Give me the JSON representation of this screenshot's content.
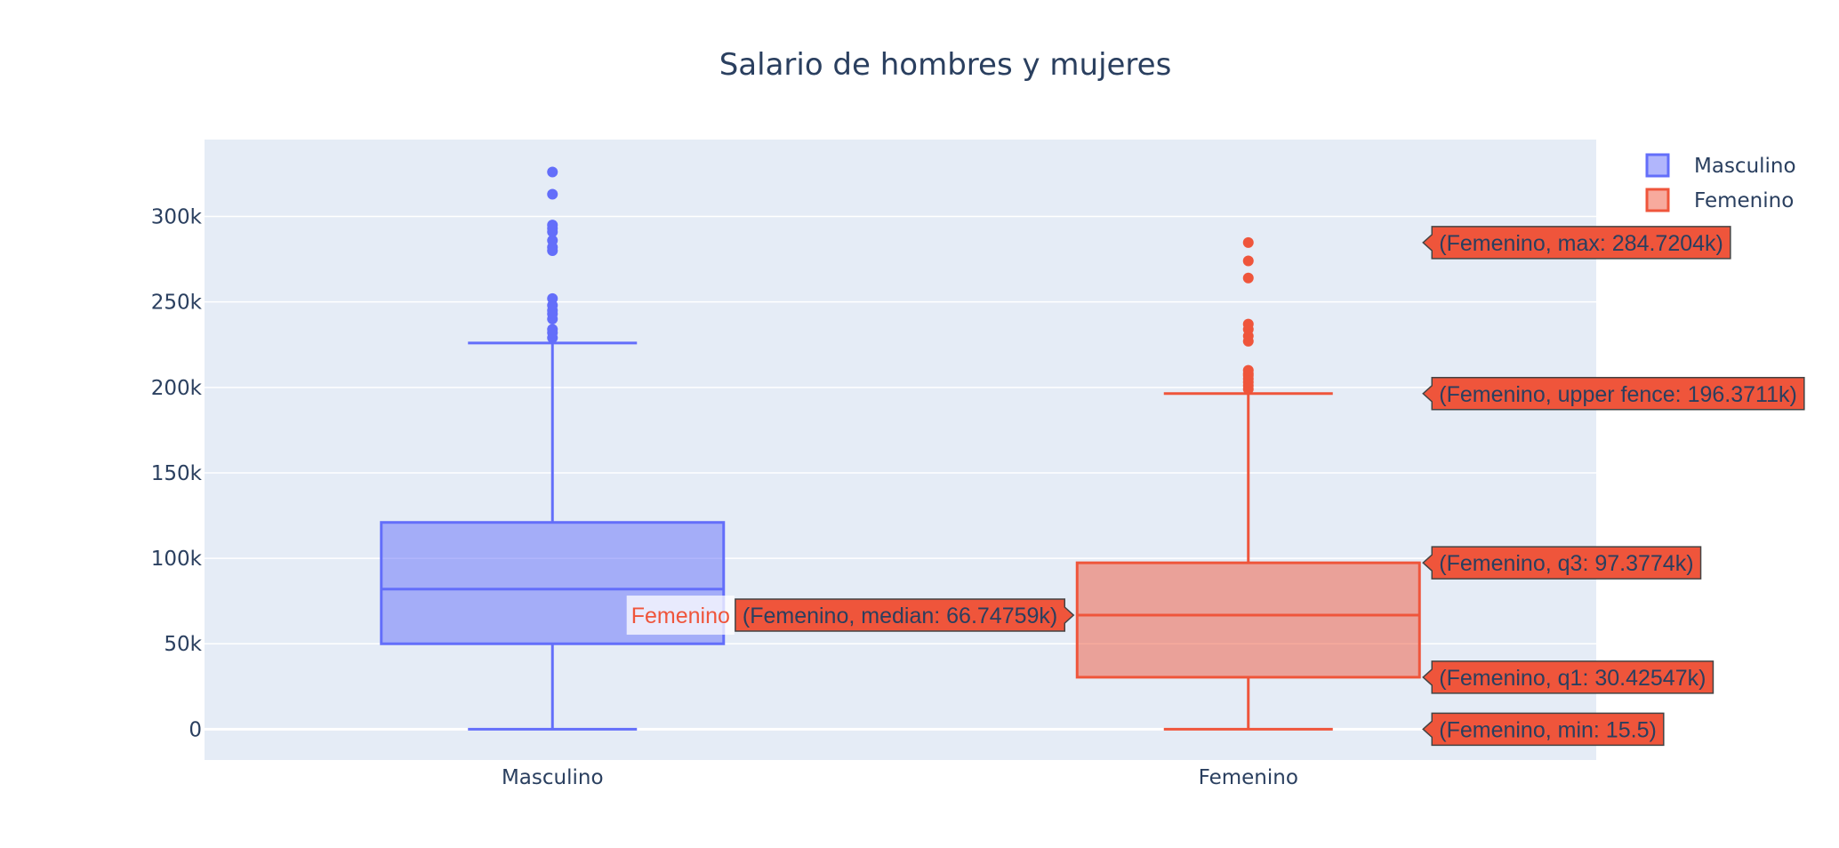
{
  "chart_data": {
    "type": "box",
    "title": "Salario de hombres y mujeres",
    "xlabel": "",
    "ylabel": "",
    "ylim": [
      -18000,
      345000
    ],
    "y_ticks": [
      {
        "value": 0,
        "label": "0"
      },
      {
        "value": 50000,
        "label": "50k"
      },
      {
        "value": 100000,
        "label": "100k"
      },
      {
        "value": 150000,
        "label": "150k"
      },
      {
        "value": 200000,
        "label": "200k"
      },
      {
        "value": 250000,
        "label": "250k"
      },
      {
        "value": 300000,
        "label": "300k"
      }
    ],
    "grid": true,
    "legend_position": "top-right",
    "categories": [
      "Masculino",
      "Femenino"
    ],
    "series": [
      {
        "name": "Masculino",
        "category": "Masculino",
        "color": "#636efa",
        "fill": "rgba(99,110,250,0.5)",
        "min": 0,
        "q1": 50000,
        "median": 82000,
        "q3": 121000,
        "upper_fence": 226000,
        "outliers": [
          229000,
          232000,
          234000,
          240000,
          243000,
          245000,
          248000,
          252000,
          280000,
          282000,
          286000,
          291000,
          293000,
          295000,
          313000,
          326000
        ]
      },
      {
        "name": "Femenino",
        "category": "Femenino",
        "color": "#ef553b",
        "fill": "rgba(239,85,59,0.5)",
        "min": 15.5,
        "q1": 30425.47,
        "median": 66747.59,
        "q3": 97377.4,
        "upper_fence": 196371.1,
        "max": 284720.4,
        "outliers": [
          199000,
          201000,
          203000,
          205000,
          207000,
          208000,
          210000,
          227000,
          230000,
          234000,
          237000,
          264000,
          274000,
          284720.4
        ]
      }
    ],
    "hover": {
      "trace_name": "Femenino",
      "labels": [
        {
          "key": "max",
          "text": "(Femenino, max: 284.7204k)",
          "value": 284720.4
        },
        {
          "key": "upper_fence",
          "text": "(Femenino, upper fence: 196.3711k)",
          "value": 196371.1
        },
        {
          "key": "q3",
          "text": "(Femenino, q3: 97.3774k)",
          "value": 97377.4
        },
        {
          "key": "median",
          "text": "(Femenino, median: 66.74759k)",
          "value": 66747.59
        },
        {
          "key": "q1",
          "text": "(Femenino, q1: 30.42547k)",
          "value": 30425.47
        },
        {
          "key": "min",
          "text": "(Femenino, min: 15.5)",
          "value": 15.5
        }
      ]
    }
  }
}
